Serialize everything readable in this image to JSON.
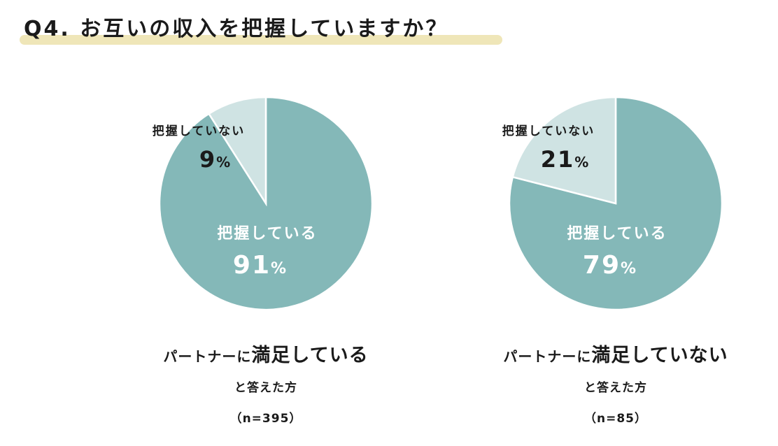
{
  "title": "Q4. お互いの収入を把握していますか？",
  "colors": {
    "primary": "#84B8B8",
    "secondary": "#CFE3E3",
    "highlight": "#EFE6B8",
    "text_dark": "#1a1a1a",
    "text_light": "#ffffff"
  },
  "chart_data": [
    {
      "type": "pie",
      "categories": [
        "把握している",
        "把握していない"
      ],
      "values": [
        91,
        9
      ],
      "value_labels": [
        "91",
        "9"
      ],
      "percent_suffix": "%",
      "caption": {
        "prefix": "パートナーに",
        "emphasis": "満足している",
        "line2": "と答えた方",
        "n": "（n=395）"
      }
    },
    {
      "type": "pie",
      "categories": [
        "把握している",
        "把握していない"
      ],
      "values": [
        79,
        21
      ],
      "value_labels": [
        "79",
        "21"
      ],
      "percent_suffix": "%",
      "caption": {
        "prefix": "パートナーに",
        "emphasis": "満足していない",
        "line2": "と答えた方",
        "n": "（n=85）"
      }
    }
  ]
}
